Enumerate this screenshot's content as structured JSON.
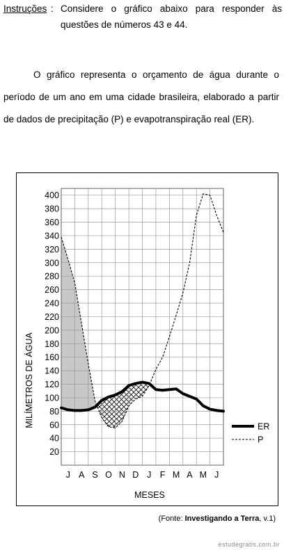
{
  "instructions": {
    "label": "Instruções",
    "colon": ":",
    "text": "Considere o gráfico abaixo para responder às questões de números 43 e 44."
  },
  "paragraph": "O gráfico representa o orçamento de água durante o período de um ano em uma cidade brasileira, elaborado a partir de dados de precipitação (P) e evapotranspiração real (ER).",
  "source": {
    "prefix": "(Fonte: ",
    "title": "Investigando a Terra",
    "suffix": ", v.1)"
  },
  "watermark": "estudegratis.com.br",
  "chart_data": {
    "type": "line",
    "title": "",
    "xlabel": "MESES",
    "ylabel": "MILÍMETROS DE ÁGUA",
    "categories": [
      "J",
      "A",
      "S",
      "O",
      "N",
      "D",
      "J",
      "F",
      "M",
      "A",
      "M",
      "J"
    ],
    "yticks": [
      20,
      40,
      60,
      80,
      100,
      120,
      140,
      160,
      180,
      200,
      220,
      240,
      260,
      280,
      300,
      320,
      340,
      360,
      380,
      400
    ],
    "ylim": [
      0,
      410
    ],
    "grid": true,
    "legend_position": "bottom-right",
    "series": [
      {
        "name": "ER",
        "style": "thick-solid",
        "color": "#000000",
        "x": [
          0,
          0.5,
          1,
          1.5,
          2,
          2.5,
          3,
          3.5,
          4,
          4.5,
          5,
          5.5,
          6,
          6.5,
          7,
          7.5,
          8,
          8.5,
          9,
          9.5,
          10,
          10.5,
          11,
          11.5,
          12
        ],
        "values": [
          85,
          82,
          81,
          81,
          82,
          86,
          96,
          101,
          104,
          109,
          118,
          121,
          123,
          121,
          112,
          111,
          112,
          113,
          106,
          102,
          98,
          88,
          83,
          81,
          80
        ]
      },
      {
        "name": "P",
        "style": "dashed",
        "color": "#000000",
        "x": [
          0,
          0.5,
          1,
          1.5,
          2,
          2.5,
          3,
          3.5,
          4,
          4.5,
          5,
          5.5,
          6,
          6.5,
          7,
          7.5,
          8,
          8.5,
          9,
          9.5,
          10,
          10.5,
          11,
          11.5,
          12
        ],
        "values": [
          338,
          305,
          270,
          210,
          150,
          95,
          70,
          57,
          55,
          65,
          88,
          98,
          102,
          118,
          142,
          160,
          190,
          222,
          255,
          300,
          370,
          402,
          400,
          370,
          345
        ]
      }
    ],
    "regions": [
      {
        "kind": "surplus",
        "fill": "gray"
      },
      {
        "kind": "deficit",
        "fill": "crosshatch"
      },
      {
        "kind": "recharge",
        "fill": "diagonal-hatch"
      }
    ]
  }
}
